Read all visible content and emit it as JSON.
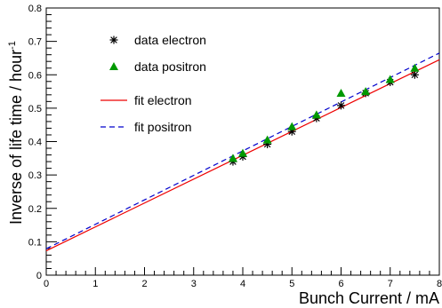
{
  "chart_data": {
    "type": "scatter",
    "title": "",
    "xlabel": "Bunch Current / mA",
    "ylabel": "Inverse of life time / hour",
    "ylabel_superscript": "-1",
    "xlim": [
      0,
      8
    ],
    "ylim": [
      0,
      0.8
    ],
    "x_ticks": [
      0,
      1,
      2,
      3,
      4,
      5,
      6,
      7,
      8
    ],
    "x_tick_labels": [
      "0",
      "1",
      "2",
      "3",
      "4",
      "5",
      "6",
      "7",
      "8"
    ],
    "y_ticks": [
      0,
      0.1,
      0.2,
      0.3,
      0.4,
      0.5,
      0.6,
      0.7,
      0.8
    ],
    "y_tick_labels": [
      "0",
      "0.1",
      "0.2",
      "0.3",
      "0.4",
      "0.5",
      "0.6",
      "0.7",
      "0.8"
    ],
    "grid": false,
    "legend_position": "top-left",
    "series": [
      {
        "name": "data electron",
        "kind": "markers",
        "marker": "asterisk",
        "color": "#000000",
        "x": [
          3.8,
          4.0,
          4.5,
          5.0,
          5.5,
          6.0,
          6.5,
          7.0,
          7.5
        ],
        "y": [
          0.34,
          0.355,
          0.392,
          0.43,
          0.47,
          0.508,
          0.545,
          0.578,
          0.6
        ]
      },
      {
        "name": "data positron",
        "kind": "markers",
        "marker": "triangle",
        "color": "#009900",
        "x": [
          3.8,
          4.0,
          4.5,
          5.0,
          5.5,
          6.0,
          6.5,
          7.0,
          7.5
        ],
        "y": [
          0.35,
          0.365,
          0.405,
          0.445,
          0.48,
          0.545,
          0.55,
          0.586,
          0.62
        ]
      },
      {
        "name": "fit electron",
        "kind": "line",
        "style": "solid",
        "color": "#ee0000",
        "x": [
          0,
          8
        ],
        "y": [
          0.073,
          0.645
        ]
      },
      {
        "name": "fit positron",
        "kind": "line",
        "style": "dashed",
        "color": "#0000cc",
        "x": [
          0,
          8
        ],
        "y": [
          0.079,
          0.665
        ]
      }
    ]
  }
}
